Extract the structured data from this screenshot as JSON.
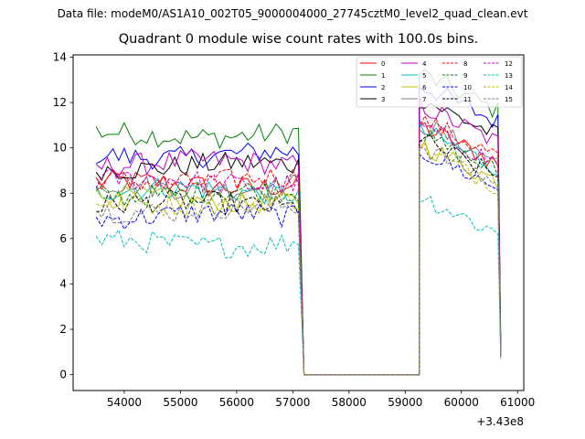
{
  "figure": {
    "suptitle": "Data file: modeM0/AS1A10_002T05_9000004000_27745cztM0_level2_quad_clean.evt"
  },
  "chart_data": {
    "type": "line",
    "title": "Quadrant 0 module wise count rates with 100.0s bins.",
    "xlabel": "",
    "ylabel": "",
    "x_offset_label": "+3.43e8",
    "xlim": [
      53090,
      61110
    ],
    "ylim": [
      -0.7,
      14.1
    ],
    "x_ticks": [
      54000,
      55000,
      56000,
      57000,
      58000,
      59000,
      60000,
      61000
    ],
    "y_ticks": [
      0,
      2,
      4,
      6,
      8,
      10,
      12,
      14
    ],
    "legend_position": "top-right",
    "gap_level": 0.0,
    "segments": [
      {
        "x_start": 53500,
        "x_end": 57100,
        "step": 100
      },
      {
        "x_start": 59250,
        "x_end": 60650,
        "step": 100
      }
    ],
    "drop_after_segment1": [
      57200,
      57300
    ],
    "rise_before_segment2": [
      59200,
      59250
    ],
    "end_point": 60700,
    "series": [
      {
        "name": "0",
        "color": "#ff0000",
        "dash": "solid",
        "level1": 8.4,
        "level2": 10.0,
        "end_value": 0.9
      },
      {
        "name": "1",
        "color": "#008000",
        "dash": "solid",
        "level1": 10.6,
        "level2": 12.3,
        "end_value": 1.5
      },
      {
        "name": "2",
        "color": "#0000ff",
        "dash": "solid",
        "level1": 9.7,
        "level2": 11.8,
        "end_value": 1.2
      },
      {
        "name": "3",
        "color": "#000000",
        "dash": "solid",
        "level1": 9.2,
        "level2": 11.2,
        "end_value": 1.1
      },
      {
        "name": "4",
        "color": "#bf00bf",
        "dash": "solid",
        "level1": 9.3,
        "level2": 10.9,
        "end_value": 1.0
      },
      {
        "name": "5",
        "color": "#00bfbf",
        "dash": "solid",
        "level1": 8.1,
        "level2": 9.8,
        "end_value": 0.9
      },
      {
        "name": "6",
        "color": "#bfbf00",
        "dash": "solid",
        "level1": 7.7,
        "level2": 9.2,
        "end_value": 0.8
      },
      {
        "name": "7",
        "color": "#808080",
        "dash": "solid",
        "level1": 8.3,
        "level2": 10.1,
        "end_value": 0.9
      },
      {
        "name": "8",
        "color": "#ff0000",
        "dash": "dashed",
        "level1": 8.6,
        "level2": 10.3,
        "end_value": 0.9
      },
      {
        "name": "9",
        "color": "#008000",
        "dash": "dashed",
        "level1": 8.0,
        "level2": 9.6,
        "end_value": 0.8
      },
      {
        "name": "10",
        "color": "#0000ff",
        "dash": "dashed",
        "level1": 7.0,
        "level2": 8.9,
        "end_value": 0.7
      },
      {
        "name": "11",
        "color": "#000000",
        "dash": "dashed",
        "level1": 7.5,
        "level2": 9.4,
        "end_value": 0.8
      },
      {
        "name": "12",
        "color": "#bf00bf",
        "dash": "dashed",
        "level1": 8.5,
        "level2": 10.0,
        "end_value": 0.9
      },
      {
        "name": "13",
        "color": "#00bfbf",
        "dash": "dashed",
        "level1": 5.8,
        "level2": 6.9,
        "end_value": 0.7
      },
      {
        "name": "14",
        "color": "#bfbf00",
        "dash": "dashed",
        "level1": 7.6,
        "level2": 9.0,
        "end_value": 0.8
      },
      {
        "name": "15",
        "color": "#808080",
        "dash": "dashed",
        "level1": 7.3,
        "level2": 9.1,
        "end_value": 0.8
      }
    ]
  }
}
